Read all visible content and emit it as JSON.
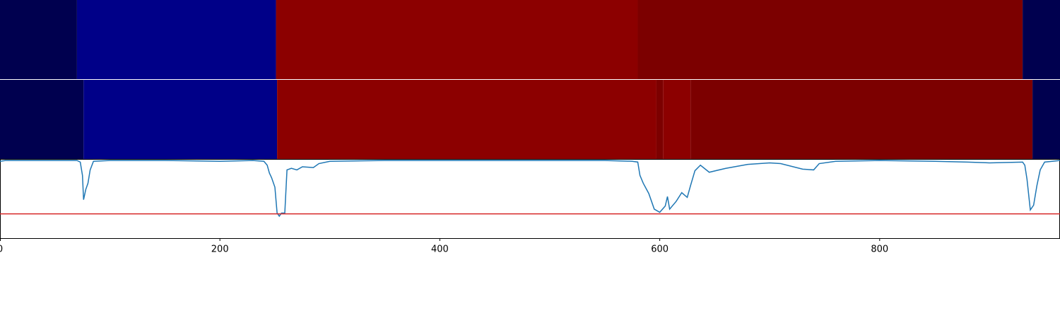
{
  "chart_data": [
    {
      "type": "segments",
      "xlim": [
        0,
        964
      ],
      "segments": [
        {
          "start": 0,
          "end": 70,
          "color": "#00004f"
        },
        {
          "start": 70,
          "end": 251,
          "color": "#000088"
        },
        {
          "start": 251,
          "end": 580,
          "color": "#8c0000"
        },
        {
          "start": 580,
          "end": 930,
          "color": "#7c0000"
        },
        {
          "start": 930,
          "end": 964,
          "color": "#00004f"
        }
      ]
    },
    {
      "type": "segments",
      "xlim": [
        0,
        964
      ],
      "segments": [
        {
          "start": 0,
          "end": 76,
          "color": "#00004f"
        },
        {
          "start": 76,
          "end": 252,
          "color": "#000088"
        },
        {
          "start": 252,
          "end": 597,
          "color": "#8c0000"
        },
        {
          "start": 597,
          "end": 603,
          "color": "#7c0000"
        },
        {
          "start": 603,
          "end": 628,
          "color": "#8c0000"
        },
        {
          "start": 628,
          "end": 939,
          "color": "#7c0000"
        },
        {
          "start": 939,
          "end": 964,
          "color": "#00004f"
        }
      ]
    },
    {
      "type": "line",
      "xlim": [
        0,
        964
      ],
      "ylim": [
        0,
        1
      ],
      "xticks": [
        0,
        200,
        400,
        600,
        800
      ],
      "color": "#1f77b4",
      "hline": 0.31,
      "hline_color": "#d62728",
      "x": [
        0,
        5,
        70,
        73,
        75,
        76,
        78,
        80,
        82,
        85,
        100,
        150,
        200,
        230,
        240,
        243,
        245,
        247,
        250,
        252,
        254,
        256,
        259,
        261,
        265,
        270,
        275,
        285,
        290,
        300,
        350,
        400,
        500,
        550,
        575,
        580,
        582,
        585,
        590,
        595,
        600,
        605,
        607,
        609,
        615,
        620,
        625,
        628,
        632,
        637,
        645,
        660,
        680,
        700,
        710,
        730,
        740,
        745,
        760,
        800,
        850,
        880,
        900,
        930,
        932,
        934,
        937,
        940,
        943,
        946,
        950,
        964
      ],
      "values": [
        0.98,
        0.99,
        0.99,
        0.97,
        0.8,
        0.49,
        0.62,
        0.7,
        0.87,
        0.98,
        0.99,
        0.99,
        0.98,
        0.99,
        0.98,
        0.93,
        0.83,
        0.77,
        0.65,
        0.32,
        0.28,
        0.32,
        0.32,
        0.87,
        0.89,
        0.87,
        0.91,
        0.9,
        0.95,
        0.98,
        0.99,
        0.99,
        0.99,
        0.99,
        0.98,
        0.97,
        0.8,
        0.7,
        0.57,
        0.37,
        0.33,
        0.41,
        0.53,
        0.37,
        0.47,
        0.58,
        0.52,
        0.67,
        0.86,
        0.93,
        0.84,
        0.89,
        0.94,
        0.96,
        0.95,
        0.88,
        0.87,
        0.95,
        0.98,
        0.99,
        0.98,
        0.97,
        0.96,
        0.97,
        0.93,
        0.75,
        0.36,
        0.42,
        0.67,
        0.87,
        0.97,
        0.99
      ]
    }
  ]
}
